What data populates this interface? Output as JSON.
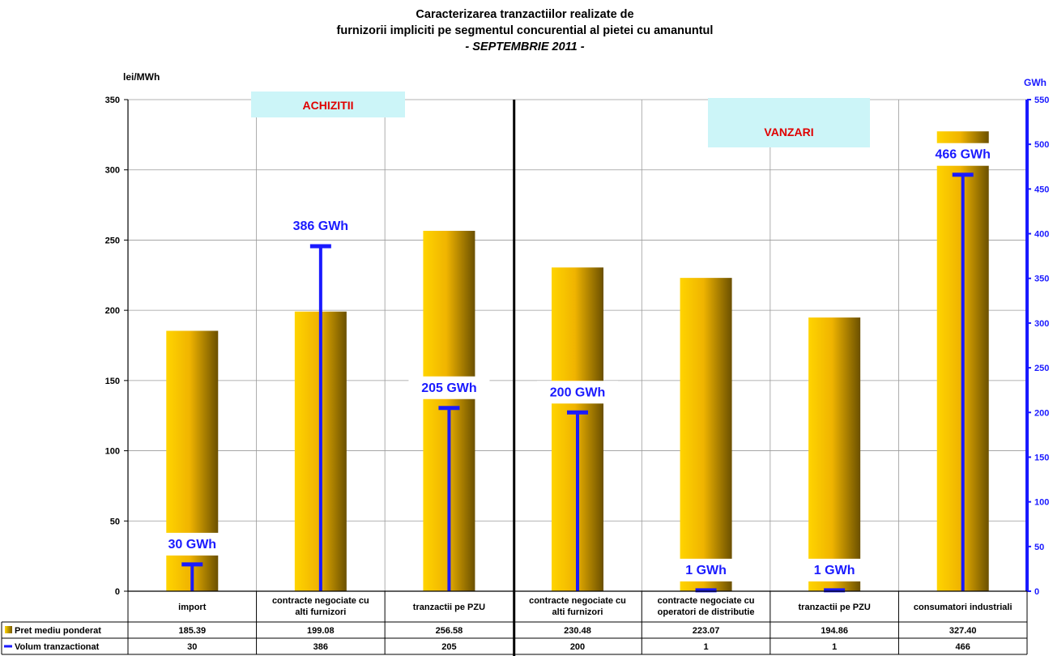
{
  "chart_data": {
    "type": "bar",
    "title": [
      "Caracterizarea tranzactiilor realizate de",
      "furnizorii impliciti pe segmentul concurential al pietei cu amanuntul",
      "- SEPTEMBRIE 2011 -"
    ],
    "y_left_unit": "lei/MWh",
    "y_right_unit": "GWh",
    "ylim_left": [
      0,
      350
    ],
    "ylim_right": [
      0,
      550
    ],
    "yticks_left": [
      0,
      50,
      100,
      150,
      200,
      250,
      300,
      350
    ],
    "yticks_right": [
      0,
      50,
      100,
      150,
      200,
      250,
      300,
      350,
      400,
      450,
      500,
      550
    ],
    "grid": true,
    "sections": [
      "ACHIZITII",
      "VANZARI"
    ],
    "categories": [
      [
        "import"
      ],
      [
        "contracte negociate cu",
        "alti furnizori"
      ],
      [
        "tranzactii pe PZU"
      ],
      [
        "contracte negociate cu",
        "alti furnizori"
      ],
      [
        "contracte negociate cu",
        "operatori de distributie"
      ],
      [
        "tranzactii pe PZU"
      ],
      [
        "consumatori industriali"
      ]
    ],
    "series": [
      {
        "name": "Pret mediu ponderat",
        "axis": "left",
        "values": [
          185.39,
          199.08,
          256.58,
          230.48,
          223.07,
          194.86,
          327.4
        ],
        "table": [
          "185.39",
          "199.08",
          "256.58",
          "230.48",
          "223.07",
          "194.86",
          "327.40"
        ],
        "color": "#e6b800"
      },
      {
        "name": "Volum tranzactionat",
        "axis": "right",
        "values": [
          30,
          386,
          205,
          200,
          1,
          1,
          466
        ],
        "table": [
          "30",
          "386",
          "205",
          "200",
          "1",
          "1",
          "466"
        ],
        "labels": [
          "30 GWh",
          "386 GWh",
          "205 GWh",
          "200 GWh",
          "1 GWh",
          "1 GWh",
          "466 GWh"
        ],
        "color": "#1a1aff"
      }
    ]
  }
}
